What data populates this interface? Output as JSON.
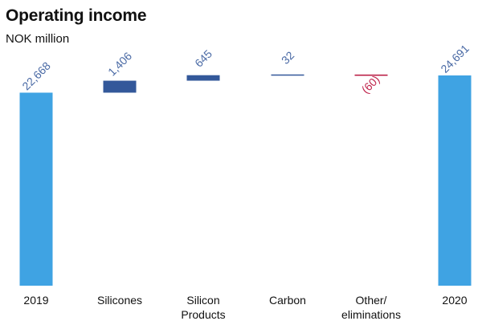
{
  "chart_data": {
    "type": "waterfall",
    "title": "Operating income",
    "subtitle": "NOK million",
    "xlabel": "",
    "ylabel": "",
    "grid": false,
    "legend": "none",
    "categories": [
      "2019",
      "Silicones",
      "Silicon Products",
      "Carbon",
      "Other/ eliminations",
      "2020"
    ],
    "category_lines": [
      [
        "2019"
      ],
      [
        "Silicones"
      ],
      [
        "Silicon",
        "Products"
      ],
      [
        "Carbon"
      ],
      [
        "Other/",
        "eliminations"
      ],
      [
        "2020"
      ]
    ],
    "values": [
      22668,
      1406,
      645,
      32,
      -60,
      24691
    ],
    "kinds": [
      "total",
      "delta",
      "delta",
      "delta",
      "delta",
      "total"
    ],
    "value_labels": [
      "22,668",
      "1,406",
      "645",
      "32",
      "(60)",
      "24,691"
    ],
    "ylim": [
      0,
      25000
    ],
    "colors": {
      "total": "#3fa3e3",
      "increase": "#33589a",
      "decrease": "#b8163e",
      "label_positive": "#4a6aa5",
      "label_negative": "#c0244c"
    }
  }
}
